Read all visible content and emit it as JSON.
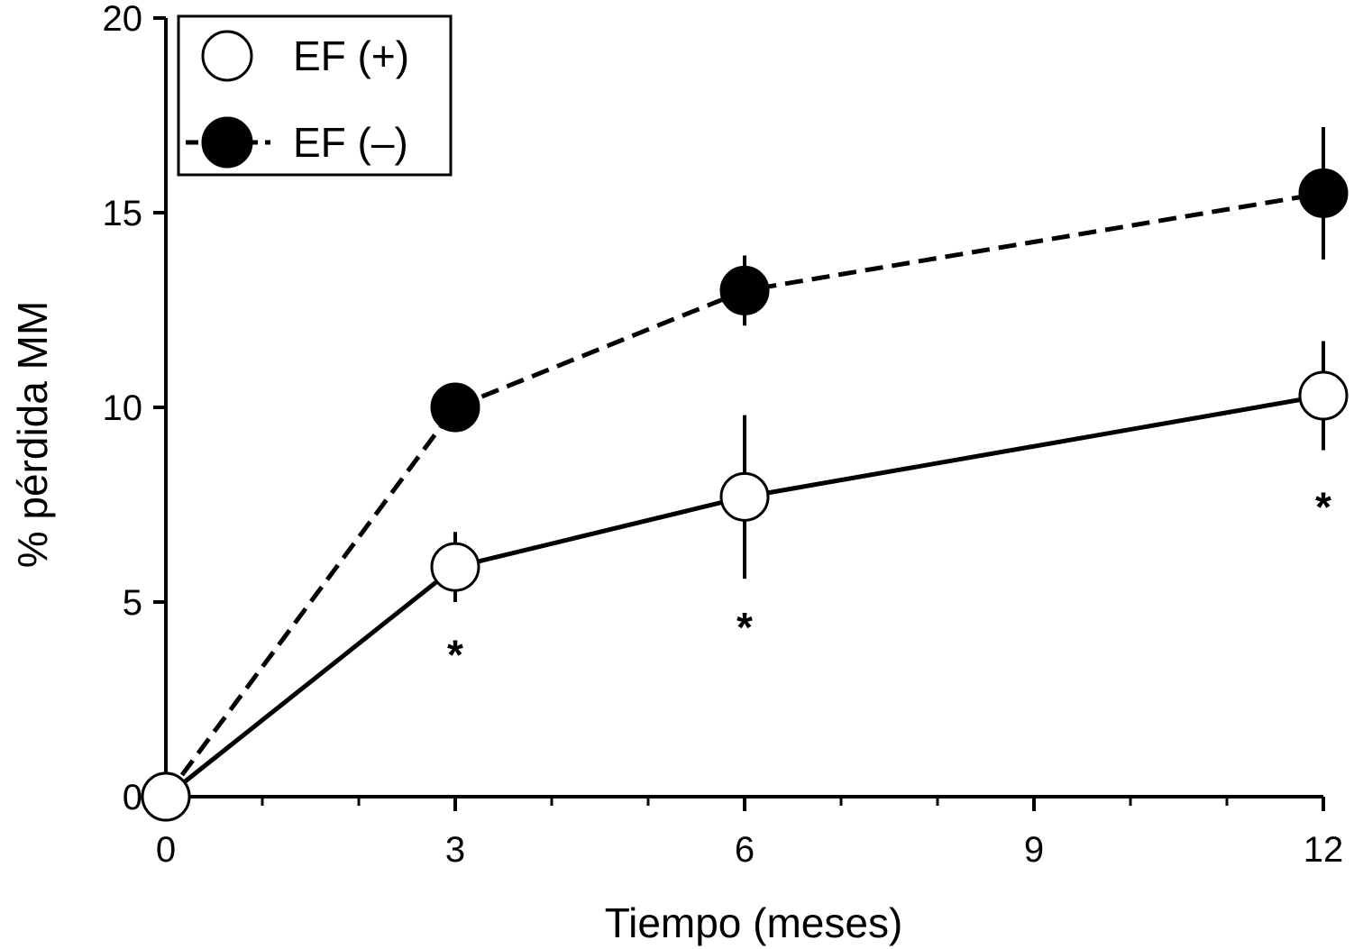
{
  "chart_data": {
    "type": "line",
    "xlabel": "Tiempo (meses)",
    "ylabel": "% pérdida MM",
    "xlim": [
      0,
      12
    ],
    "ylim": [
      0,
      20
    ],
    "x_ticks": [
      0,
      3,
      6,
      9,
      12
    ],
    "x_tick_labels": [
      "0",
      "3",
      "6",
      "9",
      "12"
    ],
    "x_minor_ticks": [
      1,
      2,
      4,
      5,
      7,
      8,
      10,
      11
    ],
    "y_ticks": [
      0,
      5,
      10,
      15,
      20
    ],
    "y_tick_labels": [
      "0",
      "5",
      "10",
      "15",
      "20"
    ],
    "grid": false,
    "legend_position": "top-left",
    "series": [
      {
        "name": "EF (+)",
        "marker": "open-circle",
        "line_style": "solid",
        "color": "#000000",
        "x": [
          0,
          3,
          6,
          12
        ],
        "y": [
          0,
          5.9,
          7.7,
          10.3
        ],
        "err": [
          0,
          0.9,
          2.1,
          1.4
        ]
      },
      {
        "name": "EF (–)",
        "marker": "filled-circle",
        "line_style": "dashed",
        "color": "#000000",
        "x": [
          0,
          3,
          6,
          12
        ],
        "y": [
          0,
          10.0,
          13.0,
          15.5
        ],
        "err": [
          0,
          0.6,
          0.9,
          1.7
        ]
      }
    ],
    "annotations": [
      {
        "text": "*",
        "x": 3,
        "y": 3.6
      },
      {
        "text": "*",
        "x": 6,
        "y": 4.3
      },
      {
        "text": "*",
        "x": 12,
        "y": 7.4
      }
    ]
  }
}
